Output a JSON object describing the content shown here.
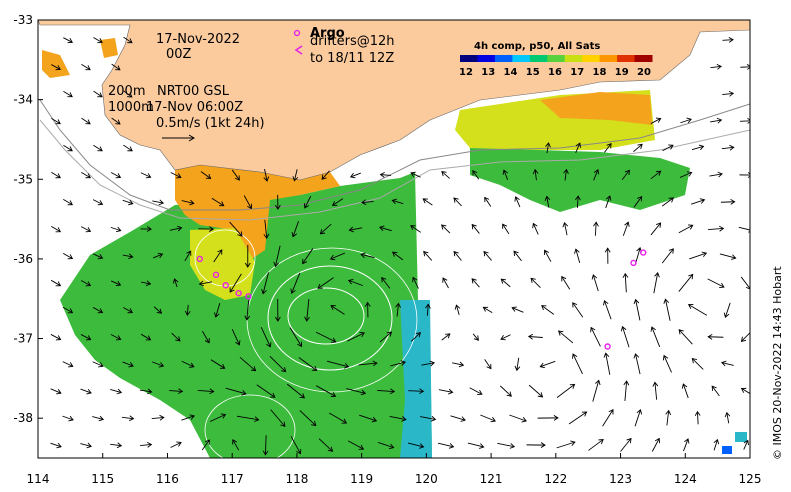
{
  "map": {
    "lon_ticks": [
      "114",
      "115",
      "116",
      "117",
      "118",
      "119",
      "120",
      "121",
      "122",
      "123",
      "124",
      "125"
    ],
    "lat_ticks": [
      "-33",
      "-34",
      "-35",
      "-36",
      "-37",
      "-38"
    ],
    "lon_range": [
      114,
      125
    ],
    "lat_range": [
      -38.5,
      -33
    ],
    "colors": {
      "land": "#fbcb9e",
      "ocean_blank": "#ffffff",
      "sst_green": "#3dbb3d",
      "sst_yellow": "#d4e01c",
      "sst_orange": "#f4a31c",
      "sst_cyan": "#2ab7c8",
      "argo": "#e81ee8"
    }
  },
  "annotations": {
    "date": "17-Nov-2022",
    "time": "00Z",
    "isobath": "200m",
    "nrt": "NRT00 GSL",
    "depth": "1000m",
    "valid": "17-Nov 06:00Z",
    "scale": "0.5m/s (1kt 24h)",
    "argo_title": "Argo",
    "argo_line1": "drifters@12h",
    "argo_line2": "to 18/11 12Z"
  },
  "colorbar": {
    "title": "4h comp, p50, All Sats",
    "labels": [
      "12",
      "13",
      "14",
      "15",
      "16",
      "17",
      "18",
      "19",
      "20"
    ],
    "colors": [
      "#00007f",
      "#0000e0",
      "#0060ff",
      "#00c8ff",
      "#00c870",
      "#58d23c",
      "#c8e012",
      "#ffd200",
      "#ff9600",
      "#e03200",
      "#a00000"
    ]
  },
  "side_label": "© IMOS 20-Nov-2022 14:43 Hobart",
  "argo_points": [
    {
      "lon": 116.5,
      "lat": -36.0
    },
    {
      "lon": 116.75,
      "lat": -36.2
    },
    {
      "lon": 116.9,
      "lat": -36.33
    },
    {
      "lon": 117.1,
      "lat": -36.43
    },
    {
      "lon": 117.25,
      "lat": -36.47
    },
    {
      "lon": 123.2,
      "lat": -36.05
    },
    {
      "lon": 123.35,
      "lat": -35.92
    },
    {
      "lon": 122.8,
      "lat": -37.1
    }
  ]
}
